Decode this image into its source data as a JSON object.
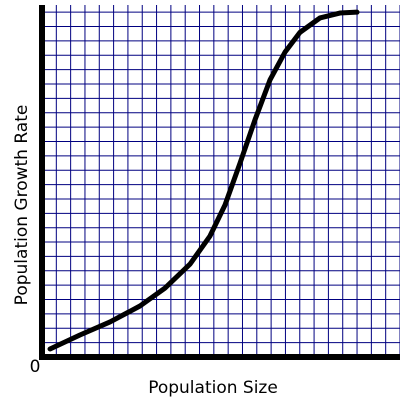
{
  "chart_data": {
    "type": "line",
    "x_label": "Population Size",
    "y_label": "Population Growth Rate",
    "origin_label": "0",
    "x": [
      0.56,
      2.65,
      4.75,
      6.84,
      8.59,
      10.34,
      11.73,
      12.78,
      13.83,
      14.87,
      15.92,
      16.97,
      18.02,
      19.41,
      20.8,
      22
    ],
    "series": [
      {
        "color": "#000000",
        "values": [
          0.56,
          1.53,
          2.44,
          3.55,
          4.8,
          6.47,
          8.42,
          10.58,
          13.5,
          16.5,
          19.28,
          21.22,
          22.6,
          23.6,
          23.94,
          24.0
        ]
      }
    ],
    "xlim": [
      0,
      25
    ],
    "ylim": [
      0,
      24.5
    ],
    "xticks": [
      0,
      1,
      2,
      3,
      4,
      5,
      6,
      7,
      8,
      9,
      10,
      11,
      12,
      13,
      14,
      15,
      16,
      17,
      18,
      19,
      20,
      21,
      22,
      23,
      24,
      25
    ],
    "yticks": [
      0,
      1,
      2,
      3,
      4,
      5,
      6,
      7,
      8,
      9,
      10,
      11,
      12,
      13,
      14,
      15,
      16,
      17,
      18,
      19,
      20,
      21,
      22,
      23,
      24
    ],
    "grid": true
  }
}
